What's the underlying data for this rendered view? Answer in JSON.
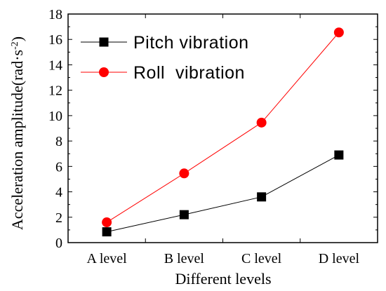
{
  "chart_data": {
    "type": "line",
    "categories": [
      "A level",
      "B level",
      "C level",
      "D level"
    ],
    "series": [
      {
        "name": "Pitch vibration",
        "values": [
          0.85,
          2.2,
          3.6,
          6.9
        ],
        "color": "#000000",
        "marker": "square"
      },
      {
        "name": "Roll  vibration",
        "values": [
          1.6,
          5.45,
          9.45,
          16.55
        ],
        "color": "#ff0000",
        "marker": "circle"
      }
    ],
    "xlabel": "Different levels",
    "ylabel": "Acceleration amplitude(rad·s⁻²)",
    "ylabel_main": "Acceleration amplitude(rad·s",
    "ylabel_exp": "-2",
    "ylabel_close": ")",
    "ylim": [
      0,
      18
    ],
    "yticks": [
      0,
      2,
      4,
      6,
      8,
      10,
      12,
      14,
      16,
      18
    ],
    "grid": false,
    "legend_position": "top-left"
  }
}
